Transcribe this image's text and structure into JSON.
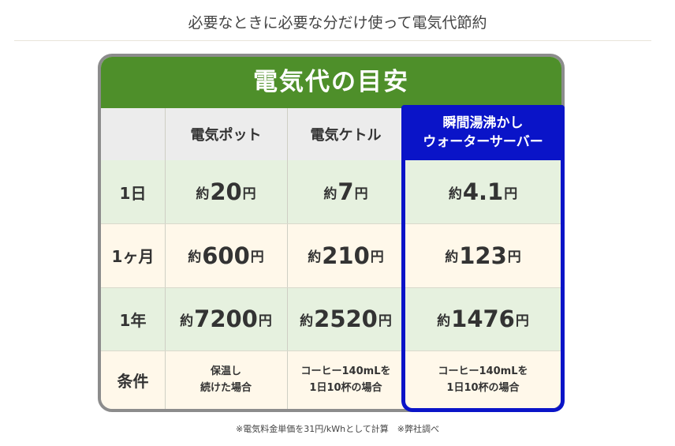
{
  "heading": "必要なときに必要な分だけ使って電気代節約",
  "card_title": "電気代の目安",
  "columns": [
    "電気ポット",
    "電気ケトル",
    {
      "line1": "瞬間湯沸かし",
      "line2": "ウォーターサーバー"
    }
  ],
  "rows": [
    {
      "label": "1日",
      "cells": [
        {
          "prefix": "約",
          "value": "20",
          "suffix": "円"
        },
        {
          "prefix": "約",
          "value": "7",
          "suffix": "円"
        },
        {
          "prefix": "約",
          "value": "4.1",
          "suffix": "円"
        }
      ]
    },
    {
      "label": "1ヶ月",
      "cells": [
        {
          "prefix": "約",
          "value": "600",
          "suffix": "円"
        },
        {
          "prefix": "約",
          "value": "210",
          "suffix": "円"
        },
        {
          "prefix": "約",
          "value": "123",
          "suffix": "円"
        }
      ]
    },
    {
      "label": "1年",
      "cells": [
        {
          "prefix": "約",
          "value": "7200",
          "suffix": "円"
        },
        {
          "prefix": "約",
          "value": "2520",
          "suffix": "円"
        },
        {
          "prefix": "約",
          "value": "1476",
          "suffix": "円"
        }
      ]
    }
  ],
  "conditions": {
    "label": "条件",
    "cells": [
      {
        "line1": "保温し",
        "line2": "続けた場合"
      },
      {
        "line1": "コーヒー140mLを",
        "line2": "1日10杯の場合"
      },
      {
        "line1": "コーヒー140mLを",
        "line2": "1日10杯の場合"
      }
    ]
  },
  "footnote": "※電気料金単価を31円/kWhとして計算　※弊社調べ",
  "colors": {
    "title_green": "#4e8f2a",
    "highlight_blue": "#0a14c8",
    "row_green": "#e6f1df",
    "row_cream": "#fff8ea"
  }
}
